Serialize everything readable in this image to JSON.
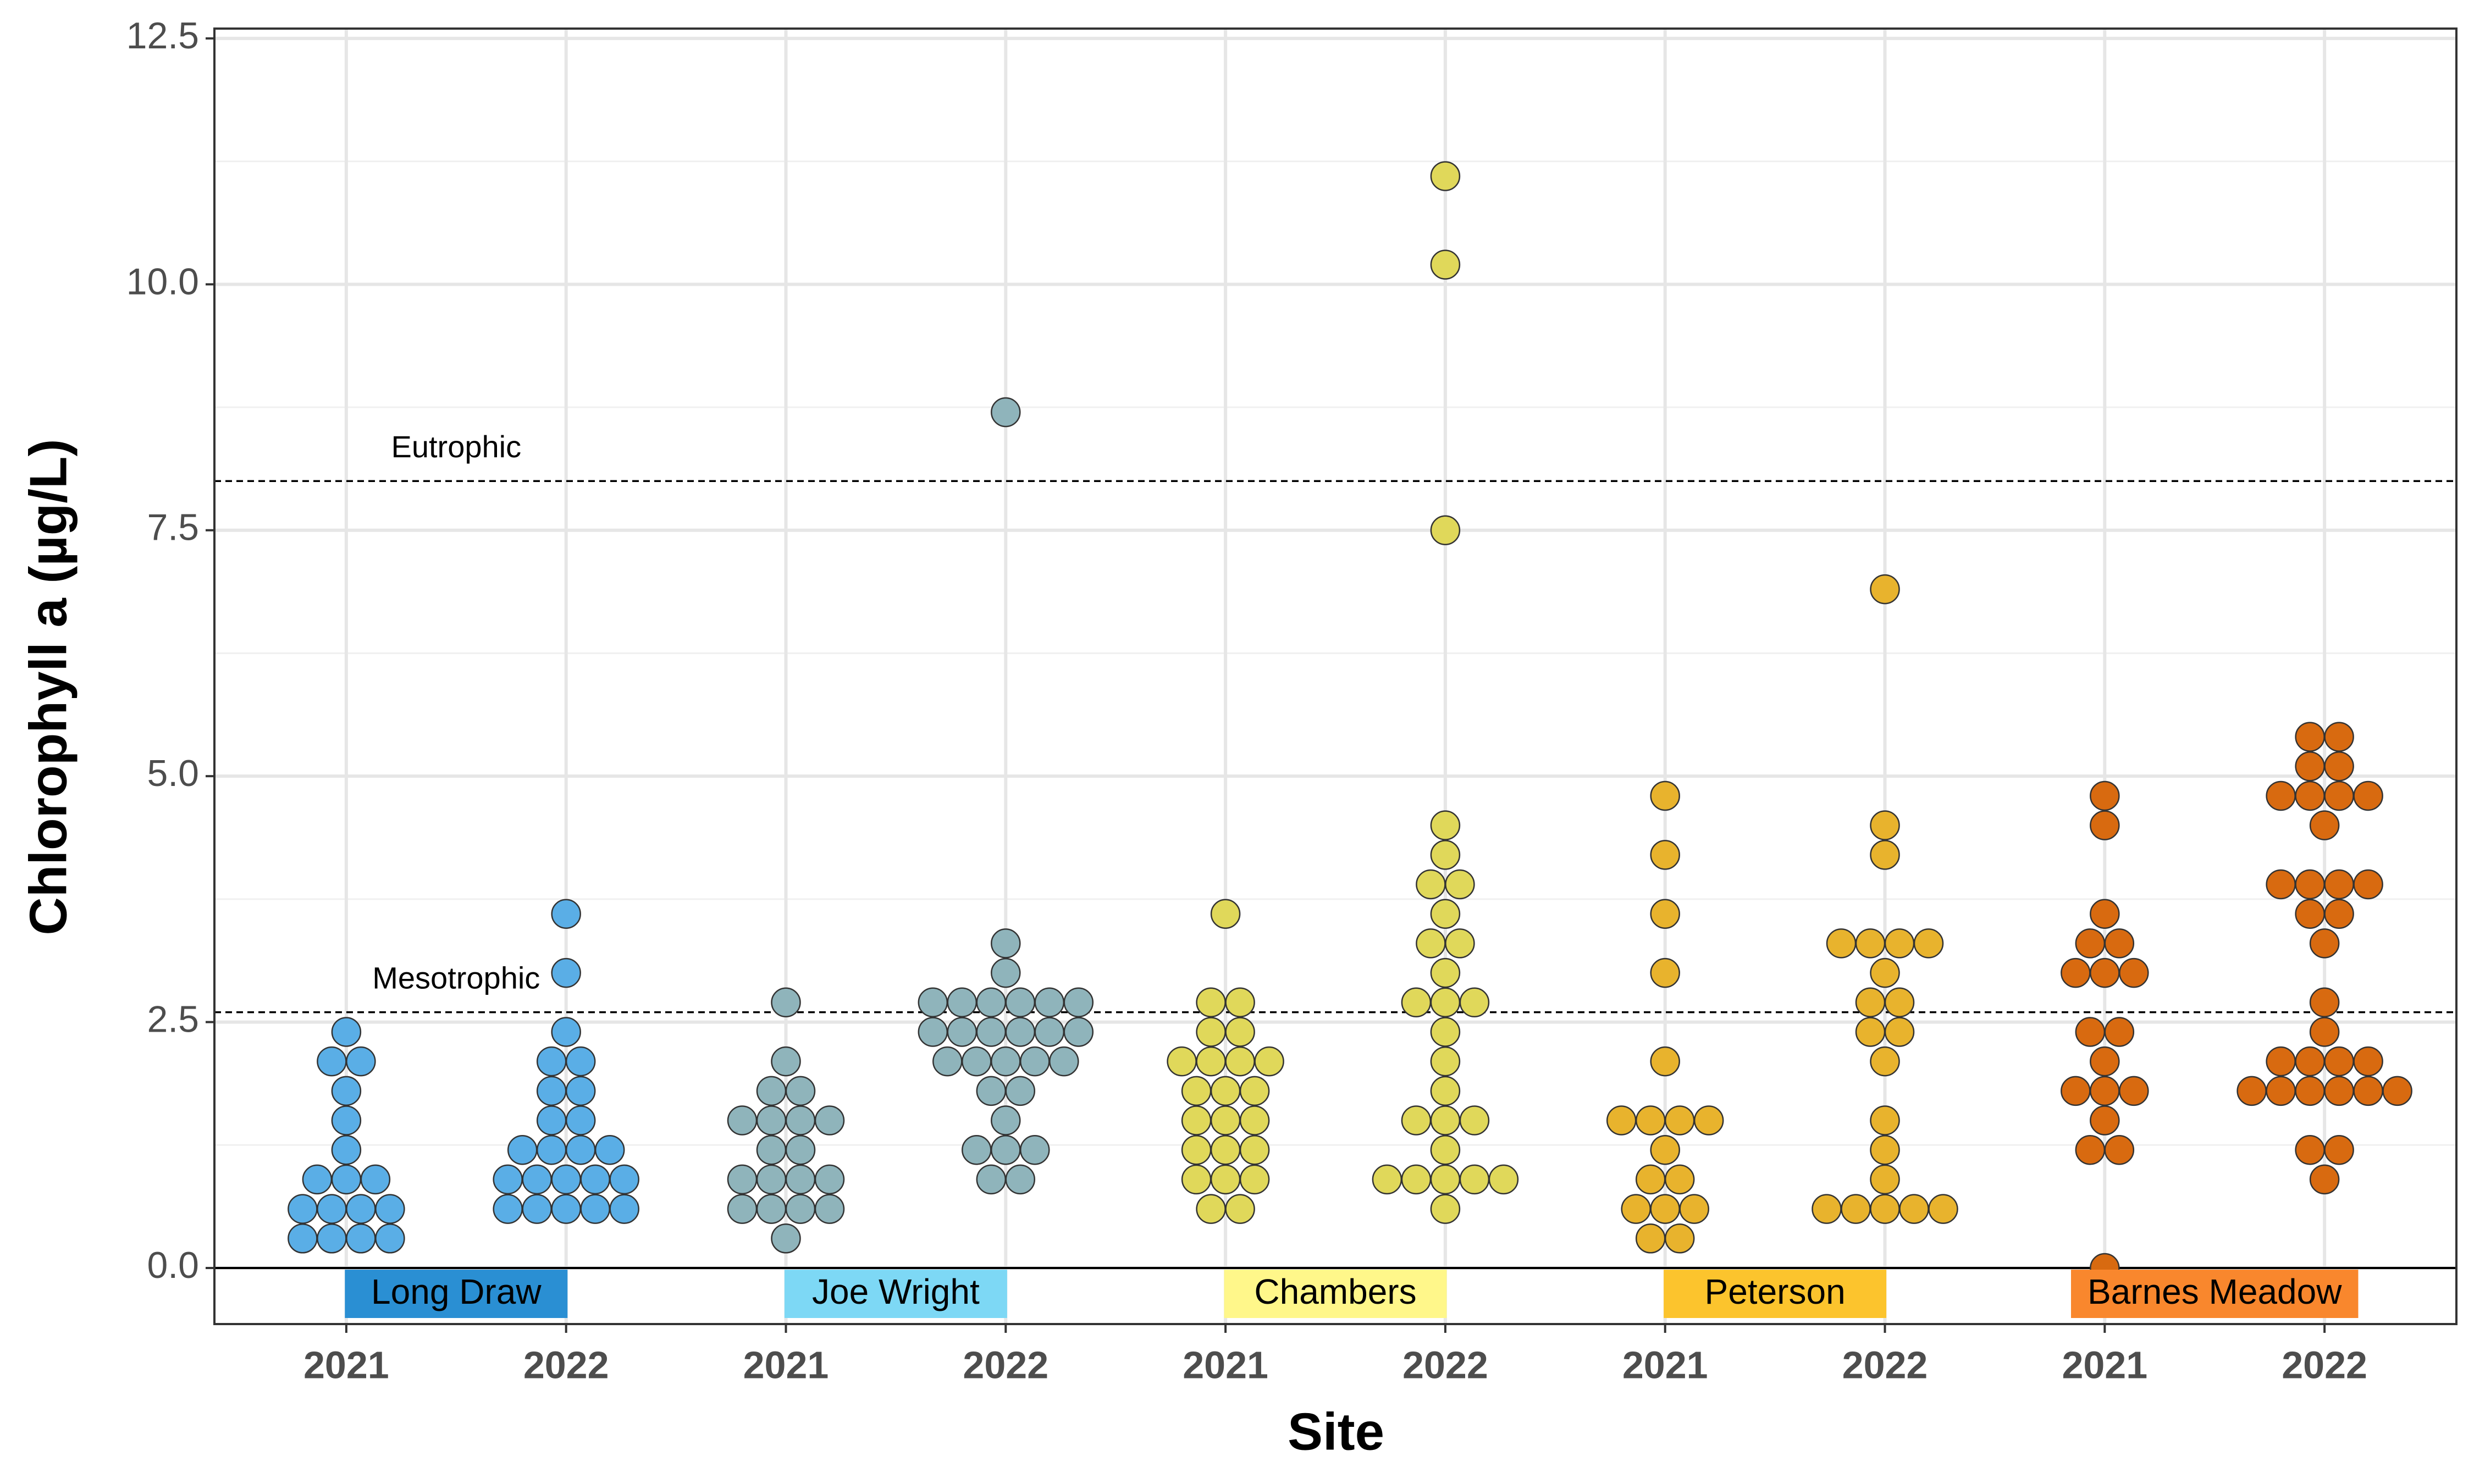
{
  "chart_data": {
    "type": "dotplot",
    "x_label": "Site",
    "y_label": "Chlorophyll a (µg/L)",
    "ylim": [
      -0.57,
      12.6
    ],
    "yticks": [
      {
        "value": 0,
        "label": "0.0"
      },
      {
        "value": 2.5,
        "label": "2.5"
      },
      {
        "value": 5,
        "label": "5.0"
      },
      {
        "value": 7.5,
        "label": "7.5"
      },
      {
        "value": 10,
        "label": "10.0"
      },
      {
        "value": 12.5,
        "label": "12.5"
      }
    ],
    "grid": true,
    "zero_line": true,
    "reference_lines": [
      {
        "label": "Eutrophic",
        "value": 8
      },
      {
        "label": "Mesotrophic",
        "value": 2.6
      }
    ],
    "sites": [
      {
        "name": "Long Draw",
        "label_color": "#2a8fd3",
        "color": "#5aaee6",
        "series": [
          {
            "year": "2021",
            "values": [
              2.4,
              2.1,
              2.1,
              1.8,
              1.5,
              1.2,
              0.9,
              0.9,
              0.9,
              0.6,
              0.6,
              0.6,
              0.6,
              0.3,
              0.3,
              0.3,
              0.3
            ]
          },
          {
            "year": "2022",
            "values": [
              3.6,
              3.0,
              2.4,
              2.1,
              2.1,
              1.8,
              1.8,
              1.5,
              1.5,
              1.2,
              1.2,
              1.2,
              1.2,
              0.9,
              0.9,
              0.9,
              0.9,
              0.9,
              0.6,
              0.6,
              0.6,
              0.6,
              0.6
            ]
          }
        ]
      },
      {
        "name": "Joe Wright",
        "label_color": "#7dd8f5",
        "color": "#8fb4bb",
        "series": [
          {
            "year": "2021",
            "values": [
              2.7,
              2.1,
              1.8,
              1.8,
              1.5,
              1.5,
              1.5,
              1.5,
              1.2,
              1.2,
              0.9,
              0.9,
              0.9,
              0.9,
              0.6,
              0.6,
              0.6,
              0.6,
              0.3
            ]
          },
          {
            "year": "2022",
            "values": [
              8.7,
              3.3,
              3.0,
              2.7,
              2.7,
              2.7,
              2.7,
              2.7,
              2.7,
              2.4,
              2.4,
              2.4,
              2.4,
              2.4,
              2.4,
              2.1,
              2.1,
              2.1,
              2.1,
              2.1,
              1.8,
              1.8,
              1.5,
              1.2,
              1.2,
              1.2,
              0.9,
              0.9
            ]
          }
        ]
      },
      {
        "name": "Chambers",
        "label_color": "#fff78a",
        "color": "#e0d85a",
        "series": [
          {
            "year": "2021",
            "values": [
              3.6,
              2.7,
              2.7,
              2.4,
              2.4,
              2.1,
              2.1,
              2.1,
              2.1,
              1.8,
              1.8,
              1.8,
              1.5,
              1.5,
              1.5,
              1.2,
              1.2,
              1.2,
              0.9,
              0.9,
              0.9,
              0.6,
              0.6
            ]
          },
          {
            "year": "2022",
            "values": [
              11.1,
              10.2,
              7.5,
              4.5,
              4.2,
              3.9,
              3.9,
              3.6,
              3.3,
              3.3,
              3.0,
              2.7,
              2.7,
              2.7,
              2.4,
              2.1,
              1.8,
              1.5,
              1.5,
              1.5,
              1.2,
              0.9,
              0.9,
              0.9,
              0.9,
              0.9,
              0.6
            ]
          }
        ]
      },
      {
        "name": "Peterson",
        "label_color": "#fcc42d",
        "color": "#e8b32d",
        "series": [
          {
            "year": "2021",
            "values": [
              4.8,
              4.2,
              3.6,
              3.0,
              2.1,
              1.5,
              1.5,
              1.5,
              1.5,
              1.2,
              0.9,
              0.9,
              0.6,
              0.6,
              0.6,
              0.3,
              0.3
            ]
          },
          {
            "year": "2022",
            "values": [
              6.9,
              4.5,
              4.2,
              3.3,
              3.3,
              3.3,
              3.3,
              3.0,
              2.7,
              2.7,
              2.4,
              2.4,
              2.1,
              1.5,
              1.2,
              0.9,
              0.6,
              0.6,
              0.6,
              0.6,
              0.6
            ]
          }
        ]
      },
      {
        "name": "Barnes Meadow",
        "label_color": "#f9872d",
        "color": "#d86a10",
        "series": [
          {
            "year": "2021",
            "values": [
              4.8,
              4.5,
              3.6,
              3.3,
              3.3,
              3.0,
              3.0,
              3.0,
              2.4,
              2.4,
              2.1,
              1.8,
              1.8,
              1.8,
              1.5,
              1.2,
              1.2,
              0.0
            ]
          },
          {
            "year": "2022",
            "values": [
              5.4,
              5.4,
              5.1,
              5.1,
              4.8,
              4.8,
              4.8,
              4.8,
              4.5,
              3.9,
              3.9,
              3.9,
              3.9,
              3.6,
              3.6,
              3.3,
              2.7,
              2.4,
              2.1,
              2.1,
              2.1,
              2.1,
              1.8,
              1.8,
              1.8,
              1.8,
              1.8,
              1.8,
              1.2,
              1.2,
              0.9
            ]
          }
        ]
      }
    ]
  }
}
